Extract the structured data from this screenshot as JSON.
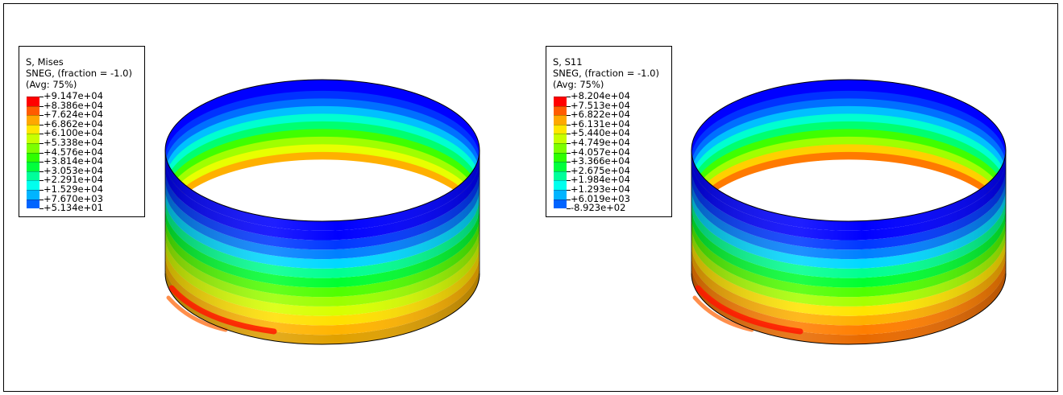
{
  "colors": {
    "band_colors": [
      "#ff0000",
      "#ff5c00",
      "#ffa800",
      "#ffe600",
      "#c8ff00",
      "#7dff00",
      "#2eff00",
      "#00ff3c",
      "#00ff9a",
      "#00ffee",
      "#00b4ff",
      "#0064ff",
      "#0000ff"
    ]
  },
  "legends": [
    {
      "header": [
        "S, Mises",
        "SNEG, (fraction = -1.0)",
        "(Avg: 75%)"
      ],
      "values": [
        "+9.147e+04",
        "+8.386e+04",
        "+7.624e+04",
        "+6.862e+04",
        "+6.100e+04",
        "+5.338e+04",
        "+4.576e+04",
        "+3.814e+04",
        "+3.053e+04",
        "+2.291e+04",
        "+1.529e+04",
        "+7.670e+03",
        "+5.134e+01"
      ]
    },
    {
      "header": [
        "S, S11",
        "SNEG, (fraction = -1.0)",
        "(Avg: 75%)"
      ],
      "values": [
        "+8.204e+04",
        "+7.513e+04",
        "+6.822e+04",
        "+6.131e+04",
        "+5.440e+04",
        "+4.749e+04",
        "+4.057e+04",
        "+3.366e+04",
        "+2.675e+04",
        "+1.984e+04",
        "+1.293e+04",
        "+6.019e+03",
        "-8.923e+02"
      ]
    }
  ]
}
